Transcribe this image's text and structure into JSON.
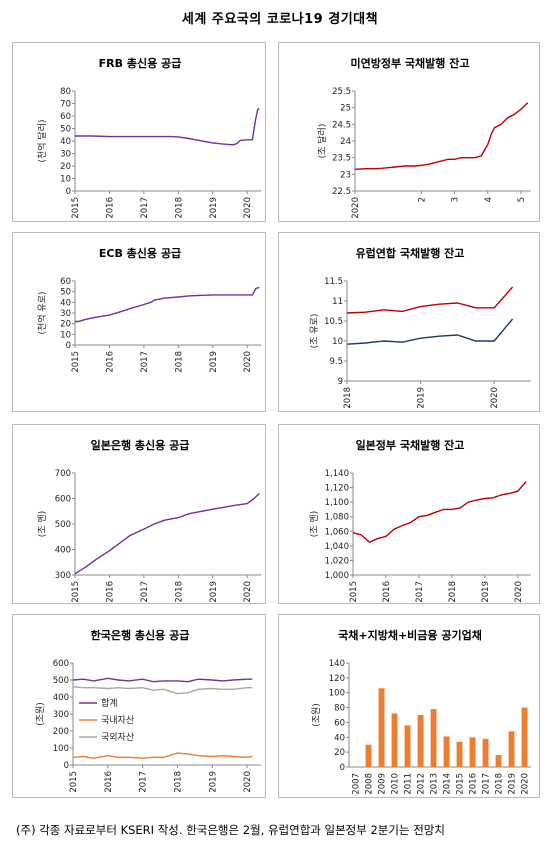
{
  "page": {
    "title": "세계 주요국의 코로나19 경기대책",
    "footnote": "(주) 각종 자료로부터 KSERI 작성. 한국은행은 2월, 유럽연합과 일본정부 2분기는 전망치"
  },
  "colors": {
    "purple": "#7030a0",
    "red": "#c00000",
    "navy": "#1f3864",
    "orange": "#ed7d31",
    "gray": "#a6a6a6",
    "grid": "#d9d9d9"
  },
  "chart_data": [
    {
      "id": "frb",
      "type": "line",
      "title": "FRB 총신용 공급",
      "ylabel": "(천억 달러)",
      "ylim": [
        0,
        80
      ],
      "yticks": [
        0,
        10,
        20,
        30,
        40,
        50,
        60,
        70,
        80
      ],
      "xlim": [
        2015,
        2020.4
      ],
      "xticks": [
        "2015",
        "2016",
        "2017",
        "2018",
        "2019",
        "2020"
      ],
      "series": [
        {
          "color": "#7030a0",
          "x": [
            2015,
            2015.5,
            2016,
            2016.5,
            2017,
            2017.5,
            2017.8,
            2018,
            2018.3,
            2018.6,
            2019,
            2019.3,
            2019.6,
            2019.7,
            2019.8,
            2020,
            2020.15,
            2020.2,
            2020.25,
            2020.3,
            2020.35
          ],
          "y": [
            44,
            44,
            43.5,
            43.5,
            43.5,
            43.5,
            43.5,
            43.3,
            42,
            40.5,
            38.5,
            37.5,
            37,
            38,
            40.5,
            41,
            41,
            50,
            58,
            65,
            66
          ]
        }
      ]
    },
    {
      "id": "us_debt",
      "type": "line",
      "title": "미연방정부 국채발행 잔고",
      "ylabel": "(조 달러)",
      "ylim": [
        22.5,
        25.5
      ],
      "yticks": [
        22.5,
        23.0,
        23.5,
        24.0,
        24.5,
        25.0,
        25.5
      ],
      "xlim": [
        0,
        5.3
      ],
      "xticks": [
        "2020",
        "2",
        "3",
        "4",
        "5"
      ],
      "series": [
        {
          "color": "#c00000",
          "x": [
            0,
            0.3,
            0.6,
            0.8,
            1,
            1.2,
            1.5,
            1.8,
            2,
            2.2,
            2.4,
            2.6,
            2.8,
            3,
            3.2,
            3.4,
            3.6,
            3.8,
            4,
            4.1,
            4.2,
            4.4,
            4.6,
            4.8,
            5,
            5.1,
            5.2
          ],
          "y": [
            23.15,
            23.17,
            23.17,
            23.18,
            23.2,
            23.22,
            23.25,
            23.25,
            23.27,
            23.3,
            23.35,
            23.4,
            23.45,
            23.45,
            23.5,
            23.5,
            23.5,
            23.55,
            23.9,
            24.2,
            24.4,
            24.5,
            24.7,
            24.8,
            24.95,
            25.05,
            25.15
          ]
        }
      ]
    },
    {
      "id": "ecb",
      "type": "line",
      "title": "ECB 총신용 공급",
      "ylabel": "(천억 유로)",
      "ylim": [
        0,
        60
      ],
      "yticks": [
        0,
        10,
        20,
        30,
        40,
        50,
        60
      ],
      "xlim": [
        2015,
        2020.4
      ],
      "xticks": [
        "2015",
        "2016",
        "2017",
        "2018",
        "2019",
        "2020"
      ],
      "series": [
        {
          "color": "#7030a0",
          "x": [
            2015,
            2015.1,
            2015.3,
            2015.6,
            2016,
            2016.3,
            2016.6,
            2017,
            2017.2,
            2017.3,
            2017.6,
            2018,
            2018.3,
            2018.6,
            2019,
            2019.3,
            2019.6,
            2020,
            2020.15,
            2020.25,
            2020.35
          ],
          "y": [
            22,
            22,
            24,
            26,
            28,
            31,
            34,
            38,
            40,
            42,
            44,
            45,
            46,
            46.5,
            47,
            47,
            47,
            47,
            47,
            53,
            54
          ]
        }
      ]
    },
    {
      "id": "eu_debt",
      "type": "line",
      "title": "유럽연합 국채발행 잔고",
      "ylabel": "(조 유로)",
      "ylim": [
        9.0,
        11.5
      ],
      "yticks": [
        9.0,
        9.5,
        10.0,
        10.5,
        11.0,
        11.5
      ],
      "xlim": [
        2018,
        2020.5
      ],
      "xticks": [
        "2018",
        "2019",
        "2020"
      ],
      "series": [
        {
          "color": "#c00000",
          "x": [
            2018,
            2018.25,
            2018.5,
            2018.75,
            2019,
            2019.25,
            2019.5,
            2019.75,
            2020,
            2020.25
          ],
          "y": [
            10.7,
            10.72,
            10.78,
            10.74,
            10.86,
            10.92,
            10.95,
            10.83,
            10.83,
            11.35
          ]
        },
        {
          "color": "#1f3864",
          "x": [
            2018,
            2018.25,
            2018.5,
            2018.75,
            2019,
            2019.25,
            2019.5,
            2019.75,
            2020,
            2020.25
          ],
          "y": [
            9.92,
            9.95,
            10.0,
            9.97,
            10.07,
            10.12,
            10.15,
            10.0,
            10.0,
            10.55
          ]
        }
      ]
    },
    {
      "id": "boj",
      "type": "line",
      "title": "일본은행 총신용 공급",
      "ylabel": "(조 엔)",
      "ylim": [
        300,
        700
      ],
      "yticks": [
        300,
        400,
        500,
        600,
        700
      ],
      "xlim": [
        2015,
        2020.4
      ],
      "xticks": [
        "2015",
        "2016",
        "2017",
        "2018",
        "2019",
        "2020"
      ],
      "series": [
        {
          "color": "#7030a0",
          "x": [
            2015,
            2015.3,
            2015.6,
            2016,
            2016.3,
            2016.6,
            2017,
            2017.3,
            2017.6,
            2018,
            2018.3,
            2018.6,
            2019,
            2019.3,
            2019.6,
            2020,
            2020.2,
            2020.35
          ],
          "y": [
            305,
            330,
            360,
            395,
            425,
            455,
            480,
            500,
            515,
            525,
            540,
            548,
            558,
            565,
            572,
            580,
            600,
            620
          ]
        }
      ]
    },
    {
      "id": "jp_debt",
      "type": "line",
      "title": "일본정부 국채발행 잔고",
      "ylabel": "(조 엔)",
      "ylim": [
        1000,
        1140
      ],
      "yticks": [
        1000,
        1020,
        1040,
        1060,
        1080,
        1100,
        1120,
        1140
      ],
      "ytick_labels": [
        "1,000",
        "1,020",
        "1,040",
        "1,060",
        "1,080",
        "1,100",
        "1,120",
        "1,140"
      ],
      "xlim": [
        2015,
        2020.4
      ],
      "xticks": [
        "2015",
        "2016",
        "2017",
        "2018",
        "2019",
        "2020"
      ],
      "series": [
        {
          "color": "#c00000",
          "x": [
            2015,
            2015.25,
            2015.5,
            2015.75,
            2016,
            2016.25,
            2016.5,
            2016.75,
            2017,
            2017.25,
            2017.5,
            2017.75,
            2018,
            2018.25,
            2018.5,
            2018.75,
            2019,
            2019.25,
            2019.5,
            2019.75,
            2020,
            2020.25
          ],
          "y": [
            1058,
            1055,
            1045,
            1050,
            1053,
            1063,
            1068,
            1072,
            1080,
            1082,
            1086,
            1090,
            1090,
            1092,
            1100,
            1103,
            1105,
            1106,
            1110,
            1112,
            1115,
            1128
          ]
        }
      ]
    },
    {
      "id": "bok",
      "type": "line",
      "title": "한국은행 총신용 공급",
      "ylabel": "(조원)",
      "ylim": [
        0,
        600
      ],
      "yticks": [
        0,
        100,
        200,
        300,
        400,
        500,
        600
      ],
      "xlim": [
        2015,
        2020.4
      ],
      "xticks": [
        "2015",
        "2016",
        "2017",
        "2018",
        "2019",
        "2020"
      ],
      "series": [
        {
          "name": "합계",
          "color": "#7030a0",
          "x": [
            2015,
            2015.3,
            2015.6,
            2016,
            2016.3,
            2016.6,
            2017,
            2017.3,
            2017.6,
            2018,
            2018.3,
            2018.6,
            2019,
            2019.3,
            2019.6,
            2020,
            2020.15
          ],
          "y": [
            500,
            505,
            495,
            510,
            500,
            495,
            505,
            490,
            495,
            495,
            490,
            505,
            500,
            495,
            500,
            505,
            505
          ]
        },
        {
          "name": "국내자산",
          "color": "#ed7d31",
          "x": [
            2015,
            2015.3,
            2015.6,
            2016,
            2016.3,
            2016.6,
            2017,
            2017.3,
            2017.6,
            2018,
            2018.3,
            2018.6,
            2019,
            2019.3,
            2019.6,
            2020,
            2020.15
          ],
          "y": [
            45,
            50,
            40,
            55,
            45,
            45,
            40,
            45,
            45,
            70,
            65,
            55,
            50,
            55,
            50,
            45,
            50
          ]
        },
        {
          "name": "국외자산",
          "color": "#a6a6a6",
          "x": [
            2015,
            2015.3,
            2015.6,
            2016,
            2016.3,
            2016.6,
            2017,
            2017.3,
            2017.6,
            2018,
            2018.3,
            2018.6,
            2019,
            2019.3,
            2019.6,
            2020,
            2020.15
          ],
          "y": [
            460,
            455,
            455,
            450,
            455,
            450,
            455,
            440,
            445,
            420,
            425,
            445,
            450,
            445,
            445,
            455,
            455
          ]
        }
      ]
    },
    {
      "id": "bonds",
      "type": "bar",
      "title": "국채+지방채+비금융 공기업채",
      "ylabel": "(조원)",
      "ylim": [
        0,
        140
      ],
      "yticks": [
        0,
        20,
        40,
        60,
        80,
        100,
        120,
        140
      ],
      "categories": [
        "2007",
        "2008",
        "2009",
        "2010",
        "2011",
        "2012",
        "2013",
        "2014",
        "2015",
        "2016",
        "2017",
        "2018",
        "2019",
        "2020"
      ],
      "values": [
        0,
        30,
        106,
        72,
        56,
        70,
        78,
        41,
        34,
        40,
        38,
        16,
        48,
        80
      ],
      "color": "#ed7d31"
    }
  ]
}
